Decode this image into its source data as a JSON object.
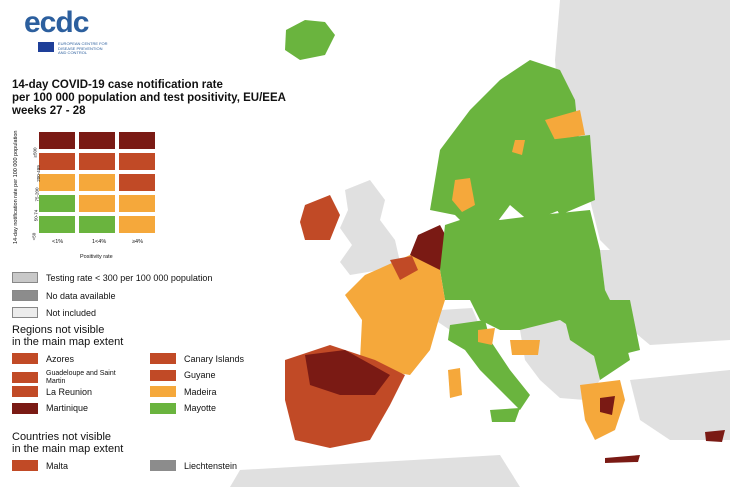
{
  "colors": {
    "sea": "#ffffff",
    "land_other": "#e0e0e0",
    "green": "#6ab43e",
    "orange": "#f5a83b",
    "red": "#c14a26",
    "dark_red": "#7a1a14",
    "grey_testing": "#c8c8c8",
    "grey_nodata": "#8c8c8c",
    "not_included": "#ececec",
    "logo_blue": "#2c5f9e"
  },
  "logo": {
    "text": "ecdc",
    "subtitle": "EUROPEAN CENTRE FOR DISEASE PREVENTION AND CONTROL"
  },
  "title": {
    "line1": "14-day COVID-19 case notification rate",
    "line2": "per 100 000 population and test positivity, EU/EEA",
    "line3": "weeks 27 - 28"
  },
  "matrix": {
    "y_axis_label": "14-day notification rate per 100 000 population",
    "x_axis_label": "Positivity rate",
    "x_ticks": [
      "<1%",
      "1<4%",
      "≥4%"
    ],
    "y_ticks": [
      "≥500",
      "200-499",
      "75-200",
      "50-74",
      "<50"
    ],
    "rows": [
      [
        "dark_red",
        "dark_red",
        "dark_red"
      ],
      [
        "red",
        "red",
        "red"
      ],
      [
        "orange",
        "orange",
        "red"
      ],
      [
        "green",
        "orange",
        "orange"
      ],
      [
        "green",
        "green",
        "orange"
      ]
    ]
  },
  "legend": {
    "testing_rate": "Testing rate < 300 per 100 000 population",
    "no_data": "No data available",
    "not_included": "Not included"
  },
  "regions_heading_1": "Regions not visible",
  "regions_heading_2": "in the main map extent",
  "regions": [
    {
      "name": "Azores",
      "color": "red"
    },
    {
      "name": "Canary Islands",
      "color": "red"
    },
    {
      "name": "Guadeloupe and Saint Martin",
      "color": "red"
    },
    {
      "name": "Guyane",
      "color": "red"
    },
    {
      "name": "La Reunion",
      "color": "red"
    },
    {
      "name": "Madeira",
      "color": "orange"
    },
    {
      "name": "Martinique",
      "color": "dark_red"
    },
    {
      "name": "Mayotte",
      "color": "green"
    }
  ],
  "countries_heading_1": "Countries not visible",
  "countries_heading_2": "in the main map extent",
  "countries": [
    {
      "name": "Malta",
      "color": "red"
    },
    {
      "name": "Liechtenstein",
      "color": "grey_nodata"
    }
  ]
}
